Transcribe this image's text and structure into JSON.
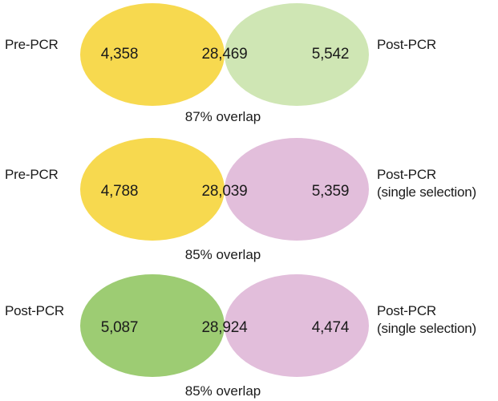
{
  "diagrams": [
    {
      "left_label": "Pre-PCR",
      "right_label": "Post-PCR",
      "right_sublabel": "",
      "left_only": "4,358",
      "shared": "28,469",
      "right_only": "5,542",
      "overlap_text": "87% overlap",
      "left_color": "#f7d94f",
      "right_color": "#cfe6b4",
      "overlap_color": "#cfd362"
    },
    {
      "left_label": "Pre-PCR",
      "right_label": "Post-PCR",
      "right_sublabel": "(single selection)",
      "left_only": "4,788",
      "shared": "28,039",
      "right_only": "5,359",
      "overlap_text": "85% overlap",
      "left_color": "#f7d94f",
      "right_color": "#e2bedb",
      "overlap_color": "#e6ad8c"
    },
    {
      "left_label": "Post-PCR",
      "right_label": "Post-PCR",
      "right_sublabel": "(single selection)",
      "left_only": "5,087",
      "shared": "28,924",
      "right_only": "4,474",
      "overlap_text": "85% overlap",
      "left_color": "#9dcc73",
      "right_color": "#e2bedb",
      "overlap_color": "#bda99a"
    }
  ]
}
